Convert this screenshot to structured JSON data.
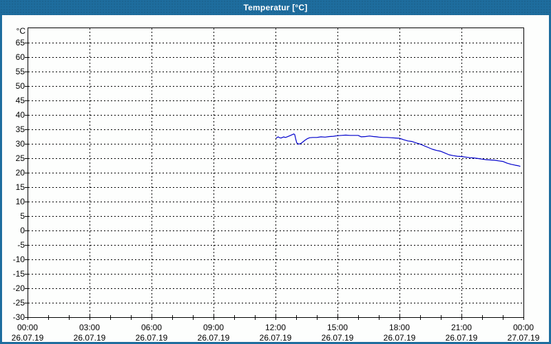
{
  "window": {
    "title": "Temperatur [°C]"
  },
  "colors": {
    "titlebar_bg": "#1e6d9e",
    "window_border": "#1e6d9e",
    "title_text": "#ffffff",
    "plot_bg": "#fdfefd",
    "grid": "#000000",
    "axis": "#000000",
    "label_text": "#000000",
    "curve": "#0000cc"
  },
  "chart_data": {
    "type": "line",
    "title": "Temperatur [°C]",
    "ylabel_unit": "°C",
    "ylim": [
      -30,
      70
    ],
    "y_tick_step": 5,
    "y_ticks": [
      65,
      60,
      55,
      50,
      45,
      40,
      35,
      30,
      25,
      20,
      15,
      10,
      5,
      0,
      -5,
      -10,
      -15,
      -20,
      -25,
      -30
    ],
    "x_axis": {
      "xlim_hours": [
        0,
        24
      ],
      "minor_tick_every_hours": 1,
      "major_tick_every_hours": 3,
      "major_ticks": [
        {
          "hour": 0,
          "time": "00:00",
          "date": "26.07.19"
        },
        {
          "hour": 3,
          "time": "03:00",
          "date": "26.07.19"
        },
        {
          "hour": 6,
          "time": "06:00",
          "date": "26.07.19"
        },
        {
          "hour": 9,
          "time": "09:00",
          "date": "26.07.19"
        },
        {
          "hour": 12,
          "time": "12:00",
          "date": "26.07.19"
        },
        {
          "hour": 15,
          "time": "15:00",
          "date": "26.07.19"
        },
        {
          "hour": 18,
          "time": "18:00",
          "date": "26.07.19"
        },
        {
          "hour": 21,
          "time": "21:00",
          "date": "26.07.19"
        },
        {
          "hour": 24,
          "time": "00:00",
          "date": "27.07.19"
        }
      ]
    },
    "grid": {
      "style": "dashed",
      "horizontal_every_c": 5,
      "vertical_every_hours": 3
    },
    "legend": "none",
    "series": [
      {
        "name": "Temperatur",
        "unit": "°C",
        "color": "#0000cc",
        "points": [
          [
            12.03,
            31.9
          ],
          [
            12.08,
            32.2
          ],
          [
            12.13,
            32.4
          ],
          [
            12.2,
            32.1
          ],
          [
            12.27,
            32.0
          ],
          [
            12.33,
            32.2
          ],
          [
            12.4,
            32.4
          ],
          [
            12.47,
            32.2
          ],
          [
            12.53,
            32.3
          ],
          [
            12.63,
            32.6
          ],
          [
            12.73,
            32.9
          ],
          [
            12.82,
            33.2
          ],
          [
            12.88,
            33.4
          ],
          [
            12.93,
            33.2
          ],
          [
            12.98,
            31.6
          ],
          [
            13.03,
            30.3
          ],
          [
            13.1,
            29.9
          ],
          [
            13.2,
            30.0
          ],
          [
            13.3,
            30.5
          ],
          [
            13.42,
            31.2
          ],
          [
            13.55,
            31.8
          ],
          [
            13.65,
            32.1
          ],
          [
            13.8,
            32.2
          ],
          [
            14.0,
            32.2
          ],
          [
            14.2,
            32.4
          ],
          [
            14.4,
            32.3
          ],
          [
            14.6,
            32.5
          ],
          [
            14.8,
            32.6
          ],
          [
            15.0,
            32.8
          ],
          [
            15.2,
            32.9
          ],
          [
            15.4,
            33.0
          ],
          [
            15.6,
            32.9
          ],
          [
            15.8,
            32.9
          ],
          [
            16.0,
            32.9
          ],
          [
            16.15,
            32.4
          ],
          [
            16.35,
            32.5
          ],
          [
            16.55,
            32.7
          ],
          [
            16.75,
            32.5
          ],
          [
            16.9,
            32.4
          ],
          [
            17.0,
            32.3
          ],
          [
            17.2,
            32.2
          ],
          [
            17.4,
            32.2
          ],
          [
            17.6,
            32.1
          ],
          [
            17.8,
            32.0
          ],
          [
            18.0,
            31.9
          ],
          [
            18.2,
            31.4
          ],
          [
            18.4,
            31.0
          ],
          [
            18.6,
            30.8
          ],
          [
            18.8,
            30.3
          ],
          [
            19.0,
            29.9
          ],
          [
            19.2,
            29.3
          ],
          [
            19.4,
            28.7
          ],
          [
            19.6,
            28.1
          ],
          [
            19.8,
            27.7
          ],
          [
            20.0,
            27.4
          ],
          [
            20.2,
            26.8
          ],
          [
            20.4,
            26.2
          ],
          [
            20.6,
            25.9
          ],
          [
            20.8,
            25.7
          ],
          [
            21.0,
            25.6
          ],
          [
            21.2,
            25.4
          ],
          [
            21.4,
            25.2
          ],
          [
            21.6,
            25.1
          ],
          [
            21.8,
            24.9
          ],
          [
            22.0,
            24.7
          ],
          [
            22.2,
            24.5
          ],
          [
            22.4,
            24.4
          ],
          [
            22.6,
            24.3
          ],
          [
            22.8,
            24.1
          ],
          [
            23.0,
            23.9
          ],
          [
            23.2,
            23.3
          ],
          [
            23.4,
            22.9
          ],
          [
            23.6,
            22.6
          ],
          [
            23.75,
            22.4
          ],
          [
            23.85,
            22.2
          ]
        ]
      }
    ]
  }
}
